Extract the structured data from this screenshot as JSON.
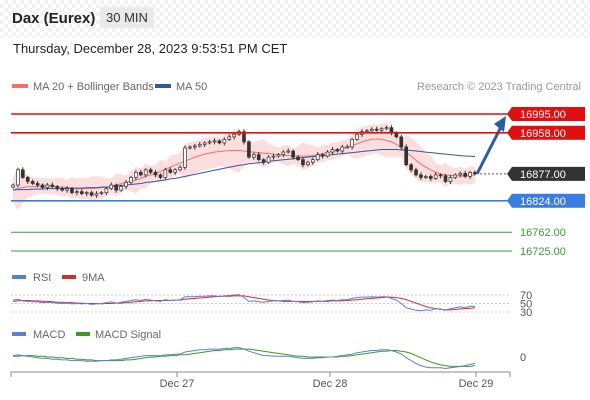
{
  "header": {
    "instrument": "Dax (Eurex)",
    "timeframe": "30 MIN",
    "datetime": "Thursday, December 28, 2023 9:53:51 PM CET"
  },
  "legend": {
    "ma20": "MA 20 + Bollinger Bands",
    "ma50": "MA 50",
    "credit": "Research © 2023 Trading Central",
    "rsi": "RSI",
    "rsi_ma": "9MA",
    "macd": "MACD",
    "macd_signal": "MACD Signal"
  },
  "colors": {
    "ma20": "#f07070",
    "bollinger": "#fdd8d8",
    "ma50": "#2e5aa0",
    "resistance": "#e01010",
    "support": "#3a7de0",
    "target": "#3a9a3a",
    "current": "#333333",
    "arrow": "#2e5aa0",
    "rsi": "#5b7fd6",
    "rsi_ma": "#d03030",
    "macd": "#5b7fd6",
    "macd_signal": "#3a9a20"
  },
  "chart_data": {
    "type": "candlestick",
    "price_levels": [
      {
        "name": "resistance-2",
        "value": 16995.0,
        "label": "16995.00",
        "kind": "resistance"
      },
      {
        "name": "resistance-1",
        "value": 16958.0,
        "label": "16958.00",
        "kind": "resistance"
      },
      {
        "name": "current",
        "value": 16877.0,
        "label": "16877.00",
        "kind": "current"
      },
      {
        "name": "support-1",
        "value": 16824.0,
        "label": "16824.00",
        "kind": "support"
      },
      {
        "name": "target-1",
        "value": 16762.0,
        "label": "16762.00",
        "kind": "target"
      },
      {
        "name": "target-2",
        "value": 16725.0,
        "label": "16725.00",
        "kind": "target"
      }
    ],
    "x_ticks": [
      "Dec 27",
      "Dec 28",
      "Dec 29"
    ],
    "closes": [
      16855,
      16885,
      16870,
      16862,
      16858,
      16855,
      16850,
      16855,
      16852,
      16848,
      16845,
      16848,
      16840,
      16842,
      16838,
      16840,
      16835,
      16838,
      16840,
      16848,
      16855,
      16845,
      16852,
      16860,
      16870,
      16880,
      16875,
      16885,
      16880,
      16875,
      16870,
      16885,
      16880,
      16885,
      16890,
      16928,
      16930,
      16932,
      16935,
      16938,
      16940,
      16942,
      16938,
      16945,
      16950,
      16955,
      16960,
      16940,
      16910,
      16915,
      16905,
      16900,
      16910,
      16912,
      16915,
      16920,
      16922,
      16910,
      16905,
      16895,
      16900,
      16905,
      16915,
      16912,
      16920,
      16925,
      16922,
      16930,
      16930,
      16945,
      16955,
      16960,
      16962,
      16965,
      16963,
      16966,
      16968,
      16958,
      16950,
      16930,
      16895,
      16885,
      16875,
      16870,
      16872,
      16868,
      16875,
      16873,
      16862,
      16870,
      16875,
      16878,
      16872,
      16880,
      16877
    ],
    "ma20": [
      16845,
      16848,
      16850,
      16852,
      16852,
      16853,
      16853,
      16853,
      16853,
      16852,
      16851,
      16850,
      16849,
      16848,
      16848,
      16848,
      16848,
      16849,
      16850,
      16851,
      16853,
      16855,
      16858,
      16860,
      16862,
      16865,
      16868,
      16872,
      16875,
      16878,
      16882,
      16886,
      16890,
      16894,
      16898,
      16902,
      16906,
      16910,
      16913,
      16916,
      16918,
      16920,
      16921,
      16922,
      16923,
      16923,
      16923,
      16922,
      16921,
      16920,
      16919,
      16918,
      16917,
      16916,
      16915,
      16914,
      16913,
      16912,
      16912,
      16912,
      16912,
      16913,
      16915,
      16917,
      16919,
      16921,
      16924,
      16927,
      16930,
      16933,
      16936,
      16940,
      16943,
      16945,
      16946,
      16945,
      16943,
      16940,
      16935,
      16928,
      16920,
      16912,
      16904,
      16896,
      16890,
      16885,
      16880,
      16877,
      16875,
      16874,
      16873,
      16873,
      16873,
      16874,
      16875
    ],
    "ma50": [
      16845,
      16846,
      16846,
      16846,
      16847,
      16847,
      16847,
      16848,
      16848,
      16848,
      16848,
      16849,
      16849,
      16849,
      16849,
      16850,
      16850,
      16850,
      16851,
      16851,
      16852,
      16853,
      16854,
      16855,
      16856,
      16857,
      16858,
      16860,
      16861,
      16862,
      16864,
      16865,
      16867,
      16868,
      16870,
      16872,
      16874,
      16876,
      16878,
      16880,
      16882,
      16884,
      16886,
      16888,
      16890,
      16892,
      16894,
      16895,
      16897,
      16898,
      16899,
      16900,
      16902,
      16903,
      16904,
      16905,
      16906,
      16907,
      16908,
      16909,
      16910,
      16911,
      16912,
      16913,
      16914,
      16915,
      16916,
      16917,
      16918,
      16919,
      16920,
      16921,
      16922,
      16923,
      16924,
      16925,
      16925,
      16925,
      16925,
      16924,
      16924,
      16923,
      16922,
      16921,
      16920,
      16919,
      16918,
      16917,
      16916,
      16915,
      16914,
      16913,
      16912,
      16912,
      16911
    ],
    "rsi_ticks": [
      "70",
      "50",
      "30"
    ],
    "rsi": [
      58,
      60,
      56,
      55,
      54,
      54,
      52,
      53,
      52,
      51,
      50,
      51,
      49,
      50,
      49,
      50,
      48,
      49,
      50,
      52,
      54,
      51,
      53,
      55,
      57,
      59,
      57,
      60,
      58,
      56,
      55,
      59,
      57,
      58,
      59,
      66,
      66,
      66,
      67,
      67,
      68,
      68,
      66,
      68,
      69,
      70,
      71,
      64,
      55,
      56,
      54,
      53,
      55,
      56,
      56,
      57,
      58,
      55,
      54,
      52,
      53,
      54,
      56,
      55,
      57,
      58,
      57,
      59,
      59,
      62,
      64,
      65,
      65,
      66,
      65,
      66,
      66,
      62,
      58,
      50,
      40,
      37,
      34,
      33,
      35,
      34,
      38,
      37,
      34,
      38,
      40,
      42,
      40,
      44,
      43
    ],
    "rsi_ma": [
      55,
      56,
      57,
      57,
      56,
      56,
      55,
      55,
      54,
      53,
      53,
      52,
      52,
      51,
      51,
      50,
      50,
      50,
      49,
      50,
      50,
      51,
      51,
      52,
      53,
      54,
      55,
      56,
      56,
      57,
      57,
      57,
      57,
      58,
      58,
      60,
      61,
      62,
      63,
      64,
      65,
      66,
      67,
      67,
      67,
      68,
      68,
      68,
      66,
      64,
      62,
      60,
      58,
      57,
      56,
      55,
      55,
      55,
      55,
      55,
      55,
      55,
      55,
      55,
      55,
      56,
      56,
      56,
      57,
      58,
      59,
      60,
      61,
      62,
      63,
      64,
      65,
      65,
      64,
      62,
      59,
      55,
      51,
      47,
      43,
      40,
      38,
      36,
      35,
      35,
      36,
      37,
      38,
      39,
      40
    ],
    "macd_ticks": [
      "0"
    ],
    "macd": [
      2,
      3,
      2,
      1,
      0,
      -1,
      -2,
      -2,
      -3,
      -3,
      -4,
      -4,
      -5,
      -5,
      -5,
      -6,
      -6,
      -6,
      -5,
      -5,
      -4,
      -4,
      -3,
      -2,
      -1,
      0,
      1,
      2,
      2,
      2,
      2,
      3,
      3,
      4,
      4,
      7,
      8,
      9,
      10,
      10,
      11,
      11,
      11,
      12,
      12,
      13,
      13,
      11,
      8,
      6,
      4,
      2,
      2,
      1,
      1,
      1,
      1,
      0,
      -1,
      -2,
      -2,
      -2,
      -1,
      -1,
      0,
      0,
      1,
      2,
      3,
      4,
      6,
      7,
      8,
      9,
      9,
      10,
      10,
      9,
      7,
      4,
      -1,
      -5,
      -9,
      -12,
      -14,
      -15,
      -15,
      -15,
      -16,
      -15,
      -14,
      -13,
      -12,
      -10,
      -9
    ],
    "macd_signal": [
      1,
      1,
      2,
      2,
      2,
      1,
      1,
      0,
      0,
      -1,
      -1,
      -2,
      -2,
      -3,
      -3,
      -4,
      -4,
      -5,
      -5,
      -5,
      -5,
      -5,
      -5,
      -4,
      -4,
      -3,
      -2,
      -1,
      0,
      0,
      1,
      1,
      2,
      2,
      3,
      3,
      4,
      5,
      6,
      7,
      8,
      9,
      9,
      10,
      10,
      11,
      11,
      11,
      11,
      10,
      9,
      8,
      7,
      6,
      5,
      4,
      3,
      2,
      1,
      1,
      0,
      0,
      0,
      0,
      0,
      0,
      0,
      1,
      1,
      2,
      3,
      4,
      5,
      6,
      7,
      8,
      8,
      9,
      9,
      8,
      7,
      5,
      2,
      -1,
      -4,
      -7,
      -9,
      -11,
      -12,
      -13,
      -13,
      -13,
      -13,
      -13,
      -12
    ]
  }
}
